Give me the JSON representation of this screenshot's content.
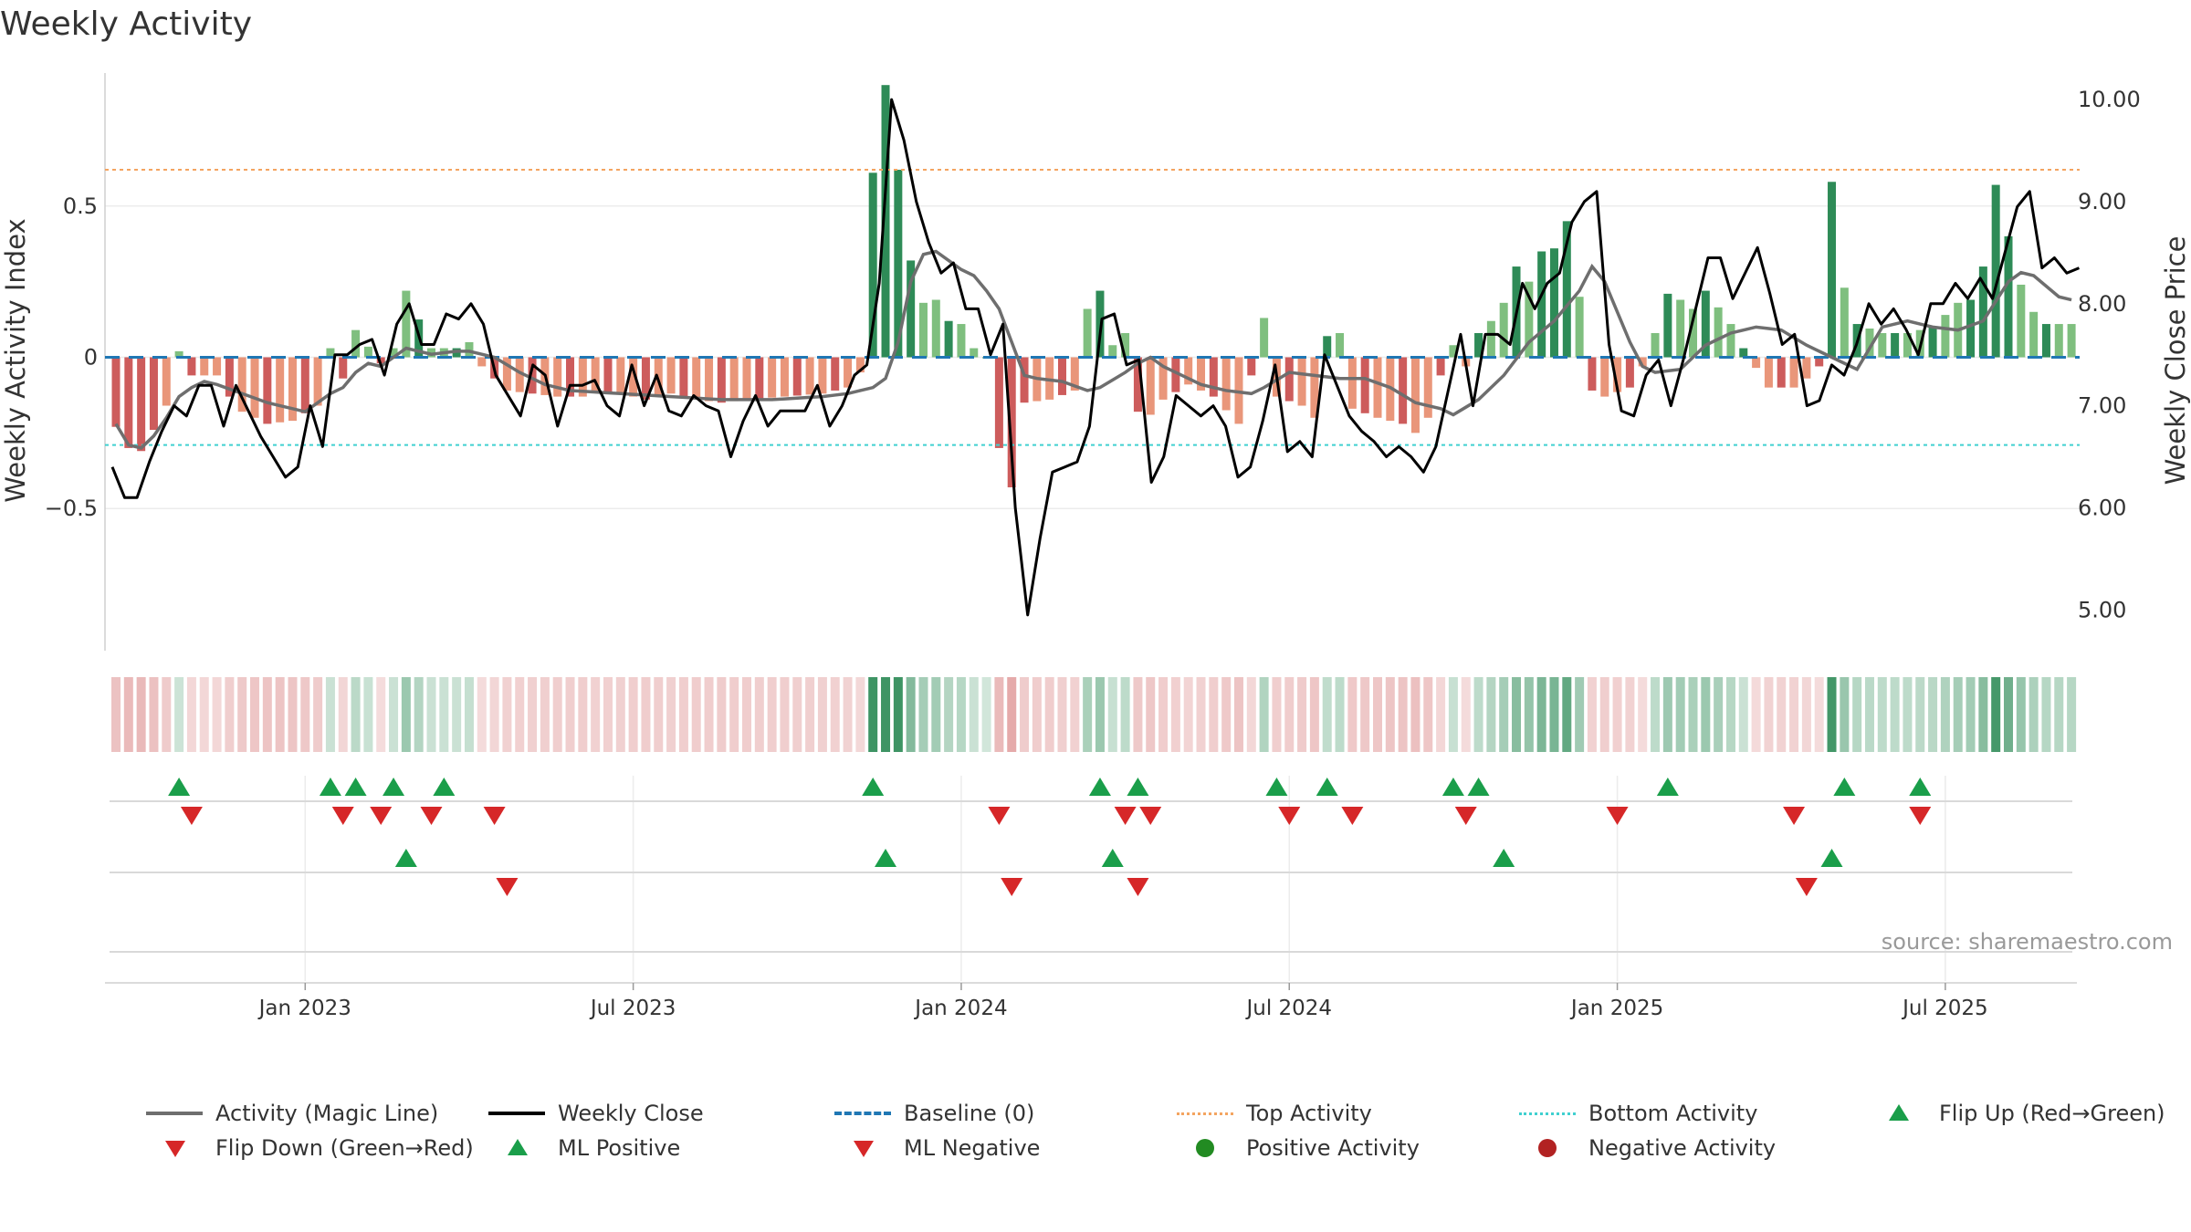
{
  "chart_data": {
    "type": "bar",
    "title": "Weekly Activity",
    "ylabel": "Weekly Activity Index",
    "y2label": "Weekly Close Price",
    "xlabel": "",
    "source": "source: sharemaestro.com",
    "ylim": [
      -0.97,
      0.97
    ],
    "y2lim": [
      4.6,
      10.35
    ],
    "yticks": [
      {
        "v": 0.5,
        "label": "0.5"
      },
      {
        "v": 0,
        "label": "0"
      },
      {
        "v": -0.5,
        "label": "−0.5"
      }
    ],
    "y2ticks": [
      {
        "v": 10,
        "label": "10.00"
      },
      {
        "v": 9,
        "label": "9.00"
      },
      {
        "v": 8,
        "label": "8.00"
      },
      {
        "v": 7,
        "label": "7.00"
      },
      {
        "v": 6,
        "label": "6.00"
      },
      {
        "v": 5,
        "label": "5.00"
      }
    ],
    "xticks": [
      {
        "week": 15,
        "label": "Jan 2023"
      },
      {
        "week": 41,
        "label": "Jul 2023"
      },
      {
        "week": 67,
        "label": "Jan 2024"
      },
      {
        "week": 93,
        "label": "Jul 2024"
      },
      {
        "week": 119,
        "label": "Jan 2025"
      },
      {
        "week": 145,
        "label": "Jul 2025"
      }
    ],
    "top_activity": 0.62,
    "bottom_activity": -0.29,
    "baseline": 0,
    "anchors_activity": [
      [
        0,
        -0.23
      ],
      [
        1,
        -0.3
      ],
      [
        2,
        -0.31
      ],
      [
        3,
        -0.24
      ],
      [
        4,
        -0.16
      ],
      [
        5,
        0.02
      ],
      [
        6,
        -0.06
      ],
      [
        8,
        -0.06
      ],
      [
        9,
        -0.13
      ],
      [
        10,
        -0.18
      ],
      [
        12,
        -0.22
      ],
      [
        14,
        -0.21
      ],
      [
        16,
        -0.16
      ],
      [
        17,
        0.03
      ],
      [
        18,
        -0.07
      ],
      [
        19,
        0.09
      ],
      [
        21,
        -0.02
      ],
      [
        22,
        0.03
      ],
      [
        23,
        0.22
      ],
      [
        25,
        0.03
      ],
      [
        27,
        0.03
      ],
      [
        28,
        0.05
      ],
      [
        29,
        -0.03
      ],
      [
        31,
        -0.11
      ],
      [
        33,
        -0.12
      ],
      [
        35,
        -0.13
      ],
      [
        37,
        -0.13
      ],
      [
        38,
        -0.11
      ],
      [
        40,
        -0.12
      ],
      [
        42,
        -0.14
      ],
      [
        44,
        -0.12
      ],
      [
        46,
        -0.14
      ],
      [
        48,
        -0.15
      ],
      [
        50,
        -0.14
      ],
      [
        53,
        -0.13
      ],
      [
        56,
        -0.12
      ],
      [
        58,
        -0.1
      ],
      [
        59,
        -0.05
      ],
      [
        60,
        0.61
      ],
      [
        61,
        0.9
      ],
      [
        62,
        0.62
      ],
      [
        63,
        0.32
      ],
      [
        64,
        0.18
      ],
      [
        65,
        0.19
      ],
      [
        66,
        0.12
      ],
      [
        67,
        0.11
      ],
      [
        68,
        0.03
      ],
      [
        69,
        0.0
      ],
      [
        70,
        -0.3
      ],
      [
        71,
        -0.43
      ],
      [
        72,
        -0.15
      ],
      [
        74,
        -0.14
      ],
      [
        76,
        -0.11
      ],
      [
        77,
        0.16
      ],
      [
        78,
        0.22
      ],
      [
        79,
        0.04
      ],
      [
        80,
        0.08
      ],
      [
        81,
        -0.18
      ],
      [
        82,
        -0.19
      ],
      [
        83,
        -0.14
      ],
      [
        85,
        -0.09
      ],
      [
        87,
        -0.13
      ],
      [
        89,
        -0.22
      ],
      [
        90,
        -0.06
      ],
      [
        91,
        0.13
      ],
      [
        92,
        -0.13
      ],
      [
        94,
        -0.16
      ],
      [
        95,
        -0.2
      ],
      [
        96,
        0.07
      ],
      [
        97,
        0.08
      ],
      [
        98,
        -0.17
      ],
      [
        100,
        -0.2
      ],
      [
        102,
        -0.22
      ],
      [
        103,
        -0.25
      ],
      [
        104,
        -0.2
      ],
      [
        105,
        -0.06
      ],
      [
        106,
        0.04
      ],
      [
        107,
        -0.03
      ],
      [
        108,
        0.08
      ],
      [
        109,
        0.12
      ],
      [
        110,
        0.18
      ],
      [
        111,
        0.3
      ],
      [
        112,
        0.25
      ],
      [
        113,
        0.35
      ],
      [
        114,
        0.36
      ],
      [
        115,
        0.45
      ],
      [
        116,
        0.2
      ],
      [
        117,
        -0.11
      ],
      [
        118,
        -0.13
      ],
      [
        120,
        -0.1
      ],
      [
        121,
        -0.03
      ],
      [
        122,
        0.08
      ],
      [
        123,
        0.21
      ],
      [
        124,
        0.19
      ],
      [
        125,
        0.16
      ],
      [
        126,
        0.22
      ],
      [
        128,
        0.11
      ],
      [
        129,
        0.03
      ],
      [
        131,
        -0.1
      ],
      [
        133,
        -0.1
      ],
      [
        134,
        -0.07
      ],
      [
        135,
        -0.03
      ],
      [
        136,
        0.58
      ],
      [
        137,
        0.23
      ],
      [
        138,
        0.11
      ],
      [
        140,
        0.08
      ],
      [
        142,
        0.08
      ],
      [
        144,
        0.1
      ],
      [
        146,
        0.18
      ],
      [
        147,
        0.19
      ],
      [
        148,
        0.3
      ],
      [
        149,
        0.57
      ],
      [
        150,
        0.4
      ],
      [
        151,
        0.24
      ],
      [
        152,
        0.15
      ],
      [
        153,
        0.11
      ],
      [
        154,
        0.11
      ]
    ],
    "anchors_close": [
      [
        0,
        6.4
      ],
      [
        1,
        6.1
      ],
      [
        2,
        6.1
      ],
      [
        3,
        6.45
      ],
      [
        4,
        6.75
      ],
      [
        5,
        7.0
      ],
      [
        6,
        6.9
      ],
      [
        7,
        7.2
      ],
      [
        8,
        7.2
      ],
      [
        9,
        6.8
      ],
      [
        10,
        7.2
      ],
      [
        11,
        6.95
      ],
      [
        12,
        6.7
      ],
      [
        13,
        6.5
      ],
      [
        14,
        6.3
      ],
      [
        15,
        6.4
      ],
      [
        16,
        7.0
      ],
      [
        17,
        6.6
      ],
      [
        18,
        7.5
      ],
      [
        19,
        7.5
      ],
      [
        20,
        7.6
      ],
      [
        21,
        7.65
      ],
      [
        22,
        7.3
      ],
      [
        23,
        7.8
      ],
      [
        24,
        8.0
      ],
      [
        25,
        7.6
      ],
      [
        26,
        7.6
      ],
      [
        27,
        7.9
      ],
      [
        28,
        7.85
      ],
      [
        29,
        8.0
      ],
      [
        30,
        7.8
      ],
      [
        31,
        7.3
      ],
      [
        32,
        7.1
      ],
      [
        33,
        6.9
      ],
      [
        34,
        7.4
      ],
      [
        35,
        7.3
      ],
      [
        36,
        6.8
      ],
      [
        37,
        7.2
      ],
      [
        38,
        7.2
      ],
      [
        39,
        7.25
      ],
      [
        40,
        7.0
      ],
      [
        41,
        6.9
      ],
      [
        42,
        7.4
      ],
      [
        43,
        7.0
      ],
      [
        44,
        7.3
      ],
      [
        45,
        6.95
      ],
      [
        46,
        6.9
      ],
      [
        47,
        7.1
      ],
      [
        48,
        7.0
      ],
      [
        49,
        6.95
      ],
      [
        50,
        6.5
      ],
      [
        51,
        6.85
      ],
      [
        52,
        7.1
      ],
      [
        53,
        6.8
      ],
      [
        54,
        6.95
      ],
      [
        55,
        6.95
      ],
      [
        56,
        6.95
      ],
      [
        57,
        7.2
      ],
      [
        58,
        6.8
      ],
      [
        59,
        7.0
      ],
      [
        60,
        7.3
      ],
      [
        61,
        7.4
      ],
      [
        62,
        8.2
      ],
      [
        63,
        10.0
      ],
      [
        64,
        9.6
      ],
      [
        65,
        9.0
      ],
      [
        66,
        8.6
      ],
      [
        67,
        8.3
      ],
      [
        68,
        8.4
      ],
      [
        69,
        7.95
      ],
      [
        70,
        7.95
      ],
      [
        71,
        7.5
      ],
      [
        72,
        7.8
      ],
      [
        73,
        6.0
      ],
      [
        74,
        4.95
      ],
      [
        75,
        5.7
      ],
      [
        76,
        6.35
      ],
      [
        77,
        6.4
      ],
      [
        78,
        6.45
      ],
      [
        79,
        6.8
      ],
      [
        80,
        7.85
      ],
      [
        81,
        7.9
      ],
      [
        82,
        7.4
      ],
      [
        83,
        7.45
      ],
      [
        84,
        6.25
      ],
      [
        85,
        6.5
      ],
      [
        86,
        7.1
      ],
      [
        87,
        7.0
      ],
      [
        88,
        6.9
      ],
      [
        89,
        7.0
      ],
      [
        90,
        6.8
      ],
      [
        91,
        6.3
      ],
      [
        92,
        6.4
      ],
      [
        93,
        6.85
      ],
      [
        94,
        7.4
      ],
      [
        95,
        6.55
      ],
      [
        96,
        6.65
      ],
      [
        97,
        6.5
      ],
      [
        98,
        7.5
      ],
      [
        99,
        7.2
      ],
      [
        100,
        6.9
      ],
      [
        101,
        6.75
      ],
      [
        102,
        6.65
      ],
      [
        103,
        6.5
      ],
      [
        104,
        6.6
      ],
      [
        105,
        6.5
      ],
      [
        106,
        6.35
      ],
      [
        107,
        6.6
      ],
      [
        108,
        7.15
      ],
      [
        109,
        7.7
      ],
      [
        110,
        7.0
      ],
      [
        111,
        7.7
      ],
      [
        112,
        7.7
      ],
      [
        113,
        7.6
      ],
      [
        114,
        8.2
      ],
      [
        115,
        7.95
      ],
      [
        116,
        8.2
      ],
      [
        117,
        8.3
      ],
      [
        118,
        8.8
      ],
      [
        119,
        9.0
      ],
      [
        120,
        9.1
      ],
      [
        121,
        7.6
      ],
      [
        122,
        6.95
      ],
      [
        123,
        6.9
      ],
      [
        124,
        7.3
      ],
      [
        125,
        7.45
      ],
      [
        126,
        7.0
      ],
      [
        127,
        7.45
      ],
      [
        128,
        7.95
      ],
      [
        129,
        8.45
      ],
      [
        130,
        8.45
      ],
      [
        131,
        8.05
      ],
      [
        132,
        8.3
      ],
      [
        133,
        8.55
      ],
      [
        134,
        8.1
      ],
      [
        135,
        7.6
      ],
      [
        136,
        7.7
      ],
      [
        137,
        7.0
      ],
      [
        138,
        7.05
      ],
      [
        139,
        7.4
      ],
      [
        140,
        7.3
      ],
      [
        141,
        7.6
      ],
      [
        142,
        8.0
      ],
      [
        143,
        7.8
      ],
      [
        144,
        7.95
      ],
      [
        145,
        7.75
      ],
      [
        146,
        7.5
      ],
      [
        147,
        8.0
      ],
      [
        148,
        8.0
      ],
      [
        149,
        8.2
      ],
      [
        150,
        8.05
      ],
      [
        151,
        8.25
      ],
      [
        152,
        8.05
      ],
      [
        153,
        8.5
      ],
      [
        154,
        8.95
      ],
      [
        155,
        9.1
      ],
      [
        156,
        8.35
      ],
      [
        157,
        8.45
      ],
      [
        158,
        8.3
      ],
      [
        159,
        8.35
      ]
    ],
    "anchors_magic": [
      [
        0,
        -0.22
      ],
      [
        1,
        -0.29
      ],
      [
        2,
        -0.3
      ],
      [
        3,
        -0.26
      ],
      [
        4,
        -0.2
      ],
      [
        5,
        -0.13
      ],
      [
        6,
        -0.1
      ],
      [
        7,
        -0.08
      ],
      [
        8,
        -0.09
      ],
      [
        10,
        -0.12
      ],
      [
        12,
        -0.15
      ],
      [
        14,
        -0.17
      ],
      [
        15,
        -0.18
      ],
      [
        16,
        -0.15
      ],
      [
        17,
        -0.12
      ],
      [
        18,
        -0.1
      ],
      [
        19,
        -0.05
      ],
      [
        20,
        -0.02
      ],
      [
        21,
        -0.03
      ],
      [
        22,
        0.0
      ],
      [
        23,
        0.03
      ],
      [
        25,
        0.01
      ],
      [
        27,
        0.02
      ],
      [
        28,
        0.02
      ],
      [
        30,
        0.0
      ],
      [
        32,
        -0.05
      ],
      [
        34,
        -0.09
      ],
      [
        36,
        -0.11
      ],
      [
        40,
        -0.12
      ],
      [
        44,
        -0.13
      ],
      [
        48,
        -0.14
      ],
      [
        52,
        -0.14
      ],
      [
        56,
        -0.13
      ],
      [
        58,
        -0.12
      ],
      [
        60,
        -0.1
      ],
      [
        61,
        -0.07
      ],
      [
        62,
        0.05
      ],
      [
        63,
        0.25
      ],
      [
        64,
        0.34
      ],
      [
        65,
        0.35
      ],
      [
        66,
        0.32
      ],
      [
        67,
        0.29
      ],
      [
        68,
        0.27
      ],
      [
        69,
        0.22
      ],
      [
        70,
        0.16
      ],
      [
        71,
        0.05
      ],
      [
        72,
        -0.06
      ],
      [
        73,
        -0.07
      ],
      [
        75,
        -0.08
      ],
      [
        77,
        -0.11
      ],
      [
        78,
        -0.1
      ],
      [
        80,
        -0.05
      ],
      [
        81,
        -0.02
      ],
      [
        82,
        0.0
      ],
      [
        83,
        -0.03
      ],
      [
        84,
        -0.05
      ],
      [
        86,
        -0.09
      ],
      [
        88,
        -0.11
      ],
      [
        90,
        -0.12
      ],
      [
        91,
        -0.1
      ],
      [
        93,
        -0.05
      ],
      [
        95,
        -0.06
      ],
      [
        97,
        -0.07
      ],
      [
        99,
        -0.07
      ],
      [
        101,
        -0.1
      ],
      [
        103,
        -0.15
      ],
      [
        105,
        -0.17
      ],
      [
        106,
        -0.19
      ],
      [
        108,
        -0.14
      ],
      [
        110,
        -0.06
      ],
      [
        112,
        0.05
      ],
      [
        114,
        0.12
      ],
      [
        116,
        0.22
      ],
      [
        117,
        0.3
      ],
      [
        118,
        0.25
      ],
      [
        119,
        0.15
      ],
      [
        120,
        0.05
      ],
      [
        121,
        -0.03
      ],
      [
        122,
        -0.05
      ],
      [
        124,
        -0.04
      ],
      [
        126,
        0.04
      ],
      [
        128,
        0.08
      ],
      [
        130,
        0.1
      ],
      [
        132,
        0.09
      ],
      [
        134,
        0.04
      ],
      [
        136,
        0.0
      ],
      [
        138,
        -0.04
      ],
      [
        140,
        0.1
      ],
      [
        142,
        0.12
      ],
      [
        144,
        0.1
      ],
      [
        146,
        0.09
      ],
      [
        148,
        0.12
      ],
      [
        150,
        0.25
      ],
      [
        151,
        0.28
      ],
      [
        152,
        0.27
      ],
      [
        154,
        0.2
      ],
      [
        156,
        0.18
      ]
    ],
    "flip_up": [
      5,
      17,
      19,
      22,
      26,
      60,
      78,
      81,
      92,
      96,
      106,
      108,
      123,
      137,
      143
    ],
    "flip_down": [
      6,
      18,
      21,
      25,
      30,
      70,
      80,
      82,
      93,
      98,
      107,
      119,
      133,
      143
    ],
    "ml_positive": [
      23,
      61,
      79,
      110,
      136
    ],
    "ml_negative": [
      31,
      71,
      81,
      134
    ],
    "colors": {
      "pos_strong": "#2e8b57",
      "pos_light": "#7fbf7f",
      "neg_strong": "#cd5c5c",
      "neg_light": "#e9967a",
      "magic": "#6e6e6e",
      "close": "#000000",
      "baseline": "#1f77b4",
      "top": "#f4a460",
      "bottom": "#40d0d0",
      "tri_up": "#1a9e4a",
      "tri_down": "#d62728",
      "pos_activity": "#228b22",
      "neg_activity": "#b22222"
    }
  },
  "legend": {
    "items": [
      {
        "label": "Activity (Magic Line)",
        "kind": "line",
        "color": "#6e6e6e"
      },
      {
        "label": "Weekly Close",
        "kind": "line",
        "color": "#000000"
      },
      {
        "label": "Baseline (0)",
        "kind": "dash",
        "color": "#1f77b4"
      },
      {
        "label": "Top Activity",
        "kind": "dot",
        "color": "#f4a460"
      },
      {
        "label": "Bottom Activity",
        "kind": "dot",
        "color": "#40d0d0"
      },
      {
        "label": "Flip Up (Red→Green)",
        "kind": "up",
        "color": "#1a9e4a"
      },
      {
        "label": "Flip Down (Green→Red)",
        "kind": "down",
        "color": "#d62728"
      },
      {
        "label": "ML Positive",
        "kind": "up",
        "color": "#1a9e4a"
      },
      {
        "label": "ML Negative",
        "kind": "down",
        "color": "#d62728"
      },
      {
        "label": "Positive Activity",
        "kind": "circle",
        "color": "#228b22"
      },
      {
        "label": "Negative Activity",
        "kind": "circle",
        "color": "#b22222"
      }
    ]
  }
}
